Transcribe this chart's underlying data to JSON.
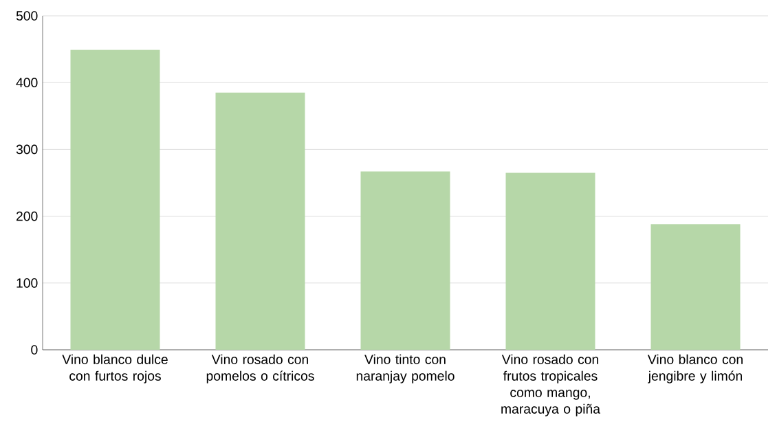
{
  "chart_data": {
    "type": "bar",
    "categories": [
      "Vino blanco dulce con furtos rojos",
      "Vino rosado con pomelos o cítricos",
      "Vino tinto con naranjay pomelo",
      "Vino rosado con frutos tropicales como mango, maracuya o piña",
      "Vino blanco con jengibre y limón"
    ],
    "values": [
      449,
      385,
      267,
      265,
      188
    ],
    "color": "#b6d7a8",
    "ylim": [
      0,
      500
    ],
    "yticks": [
      0,
      100,
      200,
      300,
      400,
      500
    ],
    "grid": "y"
  }
}
